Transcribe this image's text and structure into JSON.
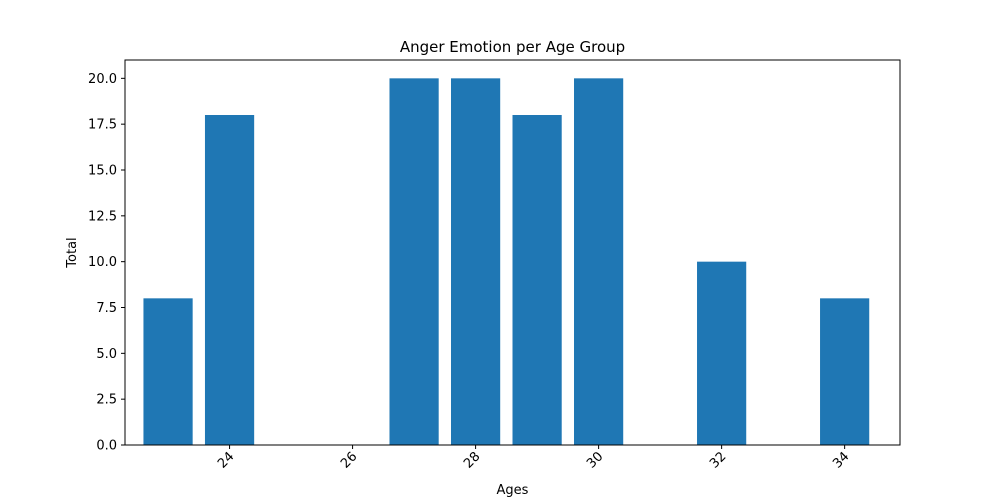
{
  "chart_data": {
    "type": "bar",
    "title": "Anger Emotion per Age Group",
    "xlabel": "Ages",
    "ylabel": "Total",
    "x": [
      23,
      24,
      27,
      28,
      29,
      30,
      32,
      34
    ],
    "values": [
      8,
      18,
      20,
      20,
      18,
      20,
      10,
      8
    ],
    "xlim": [
      22.3,
      34.9
    ],
    "ylim": [
      0,
      21
    ],
    "xticks": [
      24,
      26,
      28,
      30,
      32,
      34
    ],
    "xtick_labels": [
      "24",
      "26",
      "28",
      "30",
      "32",
      "34"
    ],
    "yticks": [
      0,
      2.5,
      5,
      7.5,
      10,
      12.5,
      15,
      17.5,
      20
    ],
    "ytick_labels": [
      "0.0",
      "2.5",
      "5.0",
      "7.5",
      "10.0",
      "12.5",
      "15.0",
      "17.5",
      "20.0"
    ],
    "bar_color": "#1f77b4",
    "grid": false,
    "legend": "none"
  }
}
